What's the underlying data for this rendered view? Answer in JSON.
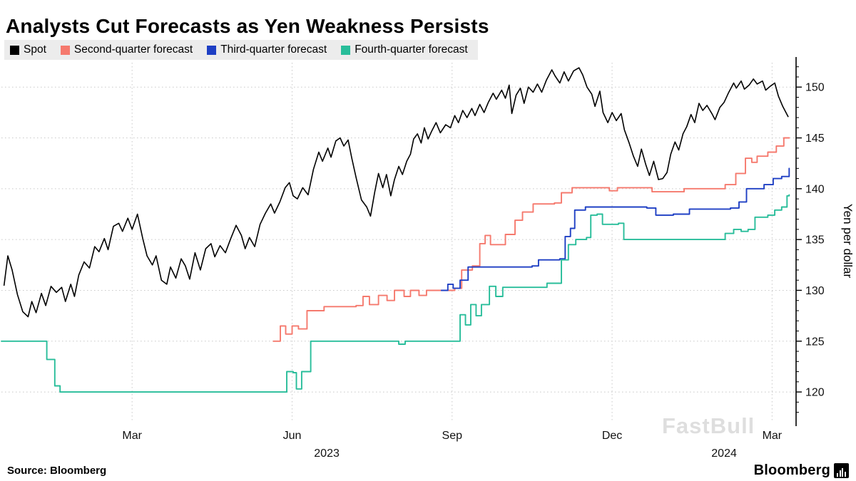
{
  "title": "Analysts Cut Forecasts as Yen Weakness Persists",
  "source": "Source:  Bloomberg",
  "watermark": "FastBull",
  "brand": "Bloomberg",
  "legend": [
    {
      "id": "spot",
      "label": "Spot",
      "color": "#000000"
    },
    {
      "id": "q2",
      "label": "Second-quarter forecast",
      "color": "#f5796d"
    },
    {
      "id": "q3",
      "label": "Third-quarter forecast",
      "color": "#1e3fc4"
    },
    {
      "id": "q4",
      "label": "Fourth-quarter forecast",
      "color": "#28bd9a"
    }
  ],
  "chart_data": {
    "type": "line",
    "x_unit": "months since Jan 1 2023",
    "xlim": [
      -0.45,
      14.45
    ],
    "ylim": [
      117.2,
      152.4
    ],
    "ylabel": "Yen per dollar",
    "y_ticks": [
      120,
      125,
      130,
      135,
      140,
      145,
      150
    ],
    "minor_tick_step": 1,
    "grid": "dotted",
    "x_ticks": [
      {
        "pos": 2,
        "label": "Mar"
      },
      {
        "pos": 5,
        "label": "Jun"
      },
      {
        "pos": 8,
        "label": "Sep"
      },
      {
        "pos": 11,
        "label": "Dec"
      },
      {
        "pos": 14,
        "label": "Mar"
      }
    ],
    "year_labels": [
      {
        "pos": 5.65,
        "label": "2023"
      },
      {
        "pos": 13.1,
        "label": "2024"
      }
    ],
    "series": [
      {
        "name": "Spot",
        "color": "#000000",
        "width": 1.6,
        "interp": "linear",
        "points": [
          [
            -0.4,
            130.5
          ],
          [
            -0.33,
            133.4
          ],
          [
            -0.25,
            132.0
          ],
          [
            -0.15,
            129.6
          ],
          [
            -0.05,
            127.9
          ],
          [
            0.05,
            127.4
          ],
          [
            0.12,
            128.9
          ],
          [
            0.2,
            127.8
          ],
          [
            0.3,
            129.7
          ],
          [
            0.38,
            128.5
          ],
          [
            0.48,
            130.4
          ],
          [
            0.58,
            129.8
          ],
          [
            0.68,
            130.3
          ],
          [
            0.75,
            128.9
          ],
          [
            0.85,
            130.6
          ],
          [
            0.92,
            129.4
          ],
          [
            1.0,
            131.5
          ],
          [
            1.1,
            132.8
          ],
          [
            1.2,
            132.2
          ],
          [
            1.3,
            134.3
          ],
          [
            1.38,
            133.8
          ],
          [
            1.48,
            135.1
          ],
          [
            1.55,
            134.0
          ],
          [
            1.65,
            136.3
          ],
          [
            1.75,
            136.6
          ],
          [
            1.82,
            135.8
          ],
          [
            1.92,
            137.1
          ],
          [
            2.0,
            136.0
          ],
          [
            2.1,
            137.5
          ],
          [
            2.2,
            135.1
          ],
          [
            2.28,
            133.4
          ],
          [
            2.38,
            132.5
          ],
          [
            2.45,
            133.4
          ],
          [
            2.55,
            131.0
          ],
          [
            2.65,
            130.6
          ],
          [
            2.72,
            132.3
          ],
          [
            2.82,
            131.2
          ],
          [
            2.92,
            133.1
          ],
          [
            3.0,
            132.4
          ],
          [
            3.08,
            131.1
          ],
          [
            3.18,
            133.7
          ],
          [
            3.28,
            132.0
          ],
          [
            3.38,
            134.1
          ],
          [
            3.48,
            134.6
          ],
          [
            3.55,
            133.3
          ],
          [
            3.65,
            134.4
          ],
          [
            3.75,
            133.7
          ],
          [
            3.85,
            135.1
          ],
          [
            3.95,
            136.4
          ],
          [
            4.05,
            135.4
          ],
          [
            4.12,
            134.1
          ],
          [
            4.2,
            135.2
          ],
          [
            4.3,
            134.3
          ],
          [
            4.4,
            136.5
          ],
          [
            4.5,
            137.6
          ],
          [
            4.6,
            138.5
          ],
          [
            4.67,
            137.6
          ],
          [
            4.77,
            138.7
          ],
          [
            4.87,
            140.1
          ],
          [
            4.95,
            140.6
          ],
          [
            5.02,
            139.3
          ],
          [
            5.1,
            139.0
          ],
          [
            5.2,
            140.1
          ],
          [
            5.3,
            139.4
          ],
          [
            5.4,
            141.9
          ],
          [
            5.5,
            143.6
          ],
          [
            5.57,
            142.7
          ],
          [
            5.67,
            144.0
          ],
          [
            5.73,
            143.1
          ],
          [
            5.82,
            144.7
          ],
          [
            5.9,
            145.0
          ],
          [
            5.97,
            144.2
          ],
          [
            6.05,
            144.8
          ],
          [
            6.12,
            143.0
          ],
          [
            6.2,
            141.1
          ],
          [
            6.3,
            138.9
          ],
          [
            6.4,
            138.2
          ],
          [
            6.47,
            137.3
          ],
          [
            6.55,
            139.7
          ],
          [
            6.62,
            141.5
          ],
          [
            6.7,
            140.1
          ],
          [
            6.77,
            141.4
          ],
          [
            6.85,
            139.3
          ],
          [
            6.92,
            140.9
          ],
          [
            7.0,
            142.2
          ],
          [
            7.07,
            141.4
          ],
          [
            7.15,
            142.7
          ],
          [
            7.22,
            143.4
          ],
          [
            7.28,
            144.9
          ],
          [
            7.35,
            145.4
          ],
          [
            7.42,
            144.5
          ],
          [
            7.48,
            146.0
          ],
          [
            7.55,
            144.9
          ],
          [
            7.62,
            145.7
          ],
          [
            7.7,
            146.5
          ],
          [
            7.78,
            145.5
          ],
          [
            7.88,
            146.3
          ],
          [
            7.97,
            146.0
          ],
          [
            8.05,
            147.2
          ],
          [
            8.12,
            146.5
          ],
          [
            8.2,
            147.7
          ],
          [
            8.28,
            147.0
          ],
          [
            8.37,
            147.9
          ],
          [
            8.43,
            147.2
          ],
          [
            8.52,
            148.3
          ],
          [
            8.6,
            147.5
          ],
          [
            8.68,
            148.5
          ],
          [
            8.77,
            149.4
          ],
          [
            8.83,
            148.8
          ],
          [
            8.93,
            149.7
          ],
          [
            9.0,
            148.9
          ],
          [
            9.07,
            150.2
          ],
          [
            9.12,
            147.4
          ],
          [
            9.2,
            149.2
          ],
          [
            9.28,
            149.9
          ],
          [
            9.35,
            148.4
          ],
          [
            9.43,
            150.0
          ],
          [
            9.52,
            149.5
          ],
          [
            9.6,
            150.3
          ],
          [
            9.68,
            149.5
          ],
          [
            9.77,
            150.7
          ],
          [
            9.87,
            151.7
          ],
          [
            9.93,
            151.1
          ],
          [
            10.02,
            150.4
          ],
          [
            10.1,
            151.5
          ],
          [
            10.18,
            150.6
          ],
          [
            10.28,
            151.6
          ],
          [
            10.38,
            151.9
          ],
          [
            10.45,
            151.2
          ],
          [
            10.53,
            150.0
          ],
          [
            10.62,
            149.3
          ],
          [
            10.68,
            148.1
          ],
          [
            10.77,
            149.6
          ],
          [
            10.83,
            147.5
          ],
          [
            10.92,
            146.5
          ],
          [
            11.0,
            147.5
          ],
          [
            11.08,
            146.7
          ],
          [
            11.17,
            147.4
          ],
          [
            11.23,
            145.8
          ],
          [
            11.32,
            144.5
          ],
          [
            11.4,
            143.2
          ],
          [
            11.48,
            142.2
          ],
          [
            11.55,
            143.9
          ],
          [
            11.63,
            142.4
          ],
          [
            11.7,
            141.3
          ],
          [
            11.78,
            142.7
          ],
          [
            11.87,
            140.9
          ],
          [
            11.95,
            141.0
          ],
          [
            12.03,
            141.6
          ],
          [
            12.1,
            143.4
          ],
          [
            12.18,
            144.6
          ],
          [
            12.25,
            143.8
          ],
          [
            12.33,
            145.4
          ],
          [
            12.4,
            146.1
          ],
          [
            12.48,
            147.3
          ],
          [
            12.55,
            146.5
          ],
          [
            12.63,
            148.4
          ],
          [
            12.7,
            147.7
          ],
          [
            12.78,
            148.2
          ],
          [
            12.87,
            147.4
          ],
          [
            12.93,
            146.8
          ],
          [
            13.02,
            148.0
          ],
          [
            13.1,
            148.5
          ],
          [
            13.18,
            149.4
          ],
          [
            13.28,
            150.4
          ],
          [
            13.33,
            149.9
          ],
          [
            13.42,
            150.6
          ],
          [
            13.48,
            149.8
          ],
          [
            13.57,
            150.2
          ],
          [
            13.65,
            150.8
          ],
          [
            13.72,
            150.3
          ],
          [
            13.82,
            150.6
          ],
          [
            13.88,
            149.7
          ],
          [
            13.97,
            150.1
          ],
          [
            14.05,
            150.4
          ],
          [
            14.12,
            149.1
          ],
          [
            14.2,
            148.1
          ],
          [
            14.3,
            147.1
          ]
        ]
      },
      {
        "name": "Second-quarter forecast",
        "color": "#f5796d",
        "width": 1.9,
        "interp": "step",
        "points": [
          [
            4.65,
            125.0
          ],
          [
            4.78,
            126.5
          ],
          [
            4.88,
            125.7
          ],
          [
            5.0,
            126.5
          ],
          [
            5.12,
            126.2
          ],
          [
            5.28,
            128.0
          ],
          [
            5.6,
            128.4
          ],
          [
            6.2,
            128.5
          ],
          [
            6.33,
            129.4
          ],
          [
            6.45,
            128.6
          ],
          [
            6.62,
            129.5
          ],
          [
            6.78,
            129.0
          ],
          [
            6.92,
            130.0
          ],
          [
            7.1,
            129.4
          ],
          [
            7.22,
            130.0
          ],
          [
            7.38,
            129.5
          ],
          [
            7.52,
            130.0
          ],
          [
            8.05,
            130.2
          ],
          [
            8.18,
            132.0
          ],
          [
            8.38,
            132.4
          ],
          [
            8.52,
            134.6
          ],
          [
            8.62,
            135.4
          ],
          [
            8.72,
            134.5
          ],
          [
            9.0,
            135.5
          ],
          [
            9.18,
            136.9
          ],
          [
            9.32,
            137.7
          ],
          [
            9.52,
            138.5
          ],
          [
            9.92,
            138.6
          ],
          [
            10.05,
            139.6
          ],
          [
            10.25,
            140.1
          ],
          [
            10.95,
            139.8
          ],
          [
            11.1,
            140.1
          ],
          [
            11.75,
            139.7
          ],
          [
            12.35,
            140.0
          ],
          [
            13.12,
            140.4
          ],
          [
            13.32,
            141.5
          ],
          [
            13.5,
            143.0
          ],
          [
            13.62,
            142.6
          ],
          [
            13.72,
            143.2
          ],
          [
            13.92,
            143.6
          ],
          [
            14.08,
            144.2
          ],
          [
            14.22,
            145.0
          ],
          [
            14.32,
            145.0
          ]
        ]
      },
      {
        "name": "Third-quarter forecast",
        "color": "#1e3fc4",
        "width": 1.9,
        "interp": "step",
        "points": [
          [
            7.8,
            130.0
          ],
          [
            7.92,
            130.6
          ],
          [
            8.02,
            130.2
          ],
          [
            8.15,
            131.0
          ],
          [
            8.3,
            132.3
          ],
          [
            9.5,
            132.4
          ],
          [
            9.62,
            133.0
          ],
          [
            10.02,
            133.1
          ],
          [
            10.12,
            135.3
          ],
          [
            10.22,
            136.1
          ],
          [
            10.3,
            137.9
          ],
          [
            10.5,
            138.2
          ],
          [
            11.65,
            138.1
          ],
          [
            11.82,
            137.4
          ],
          [
            12.15,
            137.5
          ],
          [
            12.45,
            138.0
          ],
          [
            13.22,
            138.1
          ],
          [
            13.38,
            138.7
          ],
          [
            13.52,
            140.0
          ],
          [
            13.85,
            140.4
          ],
          [
            14.02,
            141.0
          ],
          [
            14.18,
            141.2
          ],
          [
            14.32,
            142.0
          ]
        ]
      },
      {
        "name": "Fourth-quarter forecast",
        "color": "#28bd9a",
        "width": 1.9,
        "interp": "step",
        "points": [
          [
            -0.45,
            125.0
          ],
          [
            0.28,
            125.0
          ],
          [
            0.4,
            123.2
          ],
          [
            0.55,
            120.6
          ],
          [
            0.65,
            120.0
          ],
          [
            4.82,
            120.0
          ],
          [
            4.9,
            122.0
          ],
          [
            5.02,
            121.9
          ],
          [
            5.08,
            120.3
          ],
          [
            5.18,
            122.0
          ],
          [
            5.35,
            125.0
          ],
          [
            6.9,
            125.0
          ],
          [
            7.0,
            124.7
          ],
          [
            7.12,
            125.0
          ],
          [
            8.05,
            125.0
          ],
          [
            8.15,
            127.6
          ],
          [
            8.25,
            126.6
          ],
          [
            8.35,
            128.6
          ],
          [
            8.45,
            127.5
          ],
          [
            8.55,
            128.6
          ],
          [
            8.7,
            130.4
          ],
          [
            8.82,
            129.4
          ],
          [
            8.95,
            130.3
          ],
          [
            9.62,
            130.3
          ],
          [
            9.78,
            130.7
          ],
          [
            10.05,
            133.0
          ],
          [
            10.18,
            134.5
          ],
          [
            10.32,
            135.0
          ],
          [
            10.52,
            135.2
          ],
          [
            10.6,
            137.4
          ],
          [
            10.72,
            137.5
          ],
          [
            10.82,
            136.5
          ],
          [
            11.12,
            136.6
          ],
          [
            11.22,
            135.0
          ],
          [
            13.02,
            135.0
          ],
          [
            13.12,
            135.6
          ],
          [
            13.28,
            136.0
          ],
          [
            13.42,
            135.8
          ],
          [
            13.55,
            136.0
          ],
          [
            13.68,
            137.2
          ],
          [
            13.92,
            137.4
          ],
          [
            14.05,
            137.9
          ],
          [
            14.18,
            138.2
          ],
          [
            14.28,
            139.3
          ],
          [
            14.32,
            139.4
          ]
        ]
      }
    ]
  }
}
